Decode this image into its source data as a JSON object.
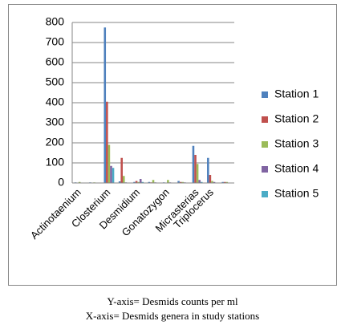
{
  "chart_data": {
    "type": "bar",
    "categories": [
      "Actinotaenium",
      null,
      "Closterium",
      null,
      "Desmidium",
      null,
      "Gonatozygon",
      null,
      "Micrasterias",
      "Triplocerus",
      null
    ],
    "series": [
      {
        "name": "Station 1",
        "color": "#4f81bd",
        "values": [
          3,
          3,
          775,
          8,
          5,
          5,
          3,
          10,
          185,
          125,
          5
        ]
      },
      {
        "name": "Station 2",
        "color": "#c0504d",
        "values": [
          2,
          2,
          405,
          125,
          10,
          3,
          2,
          5,
          140,
          40,
          5
        ]
      },
      {
        "name": "Station 3",
        "color": "#9bbb59",
        "values": [
          5,
          3,
          190,
          35,
          5,
          15,
          15,
          5,
          95,
          10,
          5
        ]
      },
      {
        "name": "Station 4",
        "color": "#8064a2",
        "values": [
          0,
          0,
          85,
          3,
          20,
          3,
          3,
          3,
          15,
          5,
          2
        ]
      },
      {
        "name": "Station 5",
        "color": "#4bacc6",
        "values": [
          0,
          0,
          75,
          2,
          5,
          2,
          2,
          2,
          5,
          2,
          2
        ]
      }
    ],
    "ylim": [
      0,
      800
    ],
    "yticks": [
      0,
      100,
      200,
      300,
      400,
      500,
      600,
      700,
      800
    ],
    "grid": true,
    "legend": "right"
  },
  "caption": [
    "Y-axis= Desmids counts per ml",
    "X-axis= Desmids genera in study stations"
  ]
}
